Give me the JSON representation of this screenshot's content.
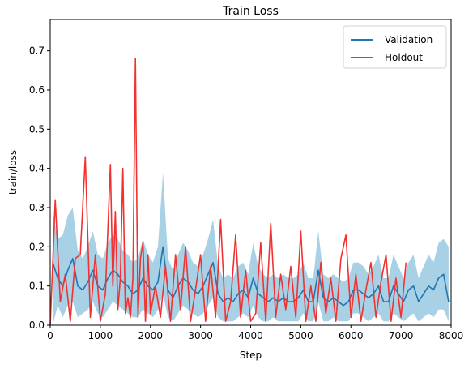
{
  "chart_data": {
    "type": "line",
    "title": "Train Loss",
    "xlabel": "Step",
    "ylabel": "train/loss",
    "xlim": [
      0,
      8000
    ],
    "ylim": [
      0,
      0.78
    ],
    "x_ticks": [
      0,
      1000,
      2000,
      3000,
      4000,
      5000,
      6000,
      7000,
      8000
    ],
    "x_tick_labels": [
      "0",
      "1000",
      "2000",
      "3000",
      "4000",
      "5000",
      "6000",
      "7000",
      "8000"
    ],
    "y_ticks": [
      0.0,
      0.1,
      0.2,
      0.3,
      0.4,
      0.5,
      0.6,
      0.7
    ],
    "y_tick_labels": [
      "0.0",
      "0.1",
      "0.2",
      "0.3",
      "0.4",
      "0.5",
      "0.6",
      "0.7"
    ],
    "grid": false,
    "legend_position": "top-right",
    "colors": {
      "validation": "#1f77b4",
      "holdout": "#f03232",
      "band": "#8cc2dc"
    },
    "series": [
      {
        "name": "Validation",
        "type": "line",
        "x": [
          50,
          150,
          250,
          350,
          450,
          550,
          650,
          750,
          850,
          950,
          1050,
          1150,
          1250,
          1350,
          1450,
          1550,
          1650,
          1750,
          1850,
          1950,
          2050,
          2150,
          2250,
          2350,
          2450,
          2550,
          2650,
          2750,
          2850,
          2950,
          3050,
          3150,
          3250,
          3350,
          3450,
          3550,
          3650,
          3750,
          3850,
          3950,
          4050,
          4150,
          4250,
          4350,
          4450,
          4550,
          4650,
          4750,
          4850,
          4950,
          5050,
          5150,
          5250,
          5350,
          5450,
          5550,
          5650,
          5750,
          5850,
          5950,
          6050,
          6150,
          6250,
          6350,
          6450,
          6550,
          6650,
          6750,
          6850,
          6950,
          7050,
          7150,
          7250,
          7350,
          7450,
          7550,
          7650,
          7750,
          7850,
          7950
        ],
        "y": [
          0.16,
          0.12,
          0.1,
          0.14,
          0.17,
          0.1,
          0.09,
          0.11,
          0.14,
          0.1,
          0.09,
          0.12,
          0.14,
          0.13,
          0.11,
          0.1,
          0.08,
          0.09,
          0.12,
          0.1,
          0.09,
          0.11,
          0.2,
          0.09,
          0.07,
          0.1,
          0.12,
          0.11,
          0.09,
          0.08,
          0.1,
          0.13,
          0.16,
          0.08,
          0.06,
          0.07,
          0.06,
          0.08,
          0.09,
          0.07,
          0.12,
          0.08,
          0.07,
          0.06,
          0.07,
          0.06,
          0.07,
          0.06,
          0.06,
          0.07,
          0.09,
          0.06,
          0.06,
          0.14,
          0.07,
          0.06,
          0.07,
          0.06,
          0.05,
          0.06,
          0.09,
          0.09,
          0.08,
          0.07,
          0.08,
          0.1,
          0.06,
          0.06,
          0.1,
          0.08,
          0.06,
          0.09,
          0.1,
          0.06,
          0.08,
          0.1,
          0.09,
          0.12,
          0.13,
          0.06
        ]
      },
      {
        "name": "Validation band",
        "type": "band",
        "x": [
          50,
          150,
          250,
          350,
          450,
          550,
          650,
          750,
          850,
          950,
          1050,
          1150,
          1250,
          1350,
          1450,
          1550,
          1650,
          1750,
          1850,
          1950,
          2050,
          2150,
          2250,
          2350,
          2450,
          2550,
          2650,
          2750,
          2850,
          2950,
          3050,
          3150,
          3250,
          3350,
          3450,
          3550,
          3650,
          3750,
          3850,
          3950,
          4050,
          4150,
          4250,
          4350,
          4450,
          4550,
          4650,
          4750,
          4850,
          4950,
          5050,
          5150,
          5250,
          5350,
          5450,
          5550,
          5650,
          5750,
          5850,
          5950,
          6050,
          6150,
          6250,
          6350,
          6450,
          6550,
          6650,
          6750,
          6850,
          6950,
          7050,
          7150,
          7250,
          7350,
          7450,
          7550,
          7650,
          7750,
          7850,
          7950
        ],
        "low": [
          0.0,
          0.05,
          0.02,
          0.05,
          0.06,
          0.02,
          0.03,
          0.04,
          0.06,
          0.03,
          0.02,
          0.04,
          0.06,
          0.05,
          0.04,
          0.03,
          0.02,
          0.02,
          0.04,
          0.03,
          0.02,
          0.04,
          0.08,
          0.02,
          0.01,
          0.03,
          0.05,
          0.04,
          0.03,
          0.02,
          0.03,
          0.05,
          0.07,
          0.02,
          0.01,
          0.01,
          0.01,
          0.02,
          0.03,
          0.02,
          0.05,
          0.02,
          0.01,
          0.01,
          0.02,
          0.01,
          0.01,
          0.01,
          0.01,
          0.01,
          0.03,
          0.01,
          0.01,
          0.06,
          0.01,
          0.01,
          0.02,
          0.01,
          0.01,
          0.01,
          0.03,
          0.03,
          0.02,
          0.01,
          0.02,
          0.03,
          0.01,
          0.01,
          0.03,
          0.02,
          0.01,
          0.02,
          0.03,
          0.01,
          0.02,
          0.03,
          0.02,
          0.04,
          0.04,
          0.01
        ],
        "high": [
          0.29,
          0.22,
          0.23,
          0.28,
          0.3,
          0.19,
          0.17,
          0.2,
          0.24,
          0.18,
          0.17,
          0.21,
          0.23,
          0.22,
          0.19,
          0.18,
          0.16,
          0.17,
          0.22,
          0.18,
          0.16,
          0.2,
          0.39,
          0.17,
          0.14,
          0.18,
          0.21,
          0.19,
          0.16,
          0.15,
          0.18,
          0.22,
          0.27,
          0.15,
          0.12,
          0.13,
          0.12,
          0.15,
          0.16,
          0.13,
          0.21,
          0.15,
          0.13,
          0.12,
          0.13,
          0.12,
          0.13,
          0.12,
          0.12,
          0.13,
          0.16,
          0.12,
          0.12,
          0.24,
          0.13,
          0.12,
          0.13,
          0.12,
          0.11,
          0.12,
          0.16,
          0.16,
          0.15,
          0.13,
          0.15,
          0.18,
          0.12,
          0.12,
          0.18,
          0.15,
          0.12,
          0.16,
          0.18,
          0.12,
          0.15,
          0.18,
          0.16,
          0.21,
          0.22,
          0.2
        ]
      },
      {
        "name": "Holdout",
        "type": "line",
        "x": [
          0,
          100,
          200,
          300,
          400,
          500,
          600,
          700,
          800,
          900,
          1000,
          1100,
          1200,
          1250,
          1300,
          1350,
          1400,
          1450,
          1500,
          1550,
          1600,
          1650,
          1700,
          1750,
          1800,
          1850,
          1900,
          1950,
          2000,
          2100,
          2200,
          2300,
          2400,
          2500,
          2600,
          2700,
          2800,
          2900,
          3000,
          3100,
          3200,
          3300,
          3400,
          3500,
          3600,
          3700,
          3800,
          3900,
          4000,
          4100,
          4200,
          4300,
          4400,
          4500,
          4600,
          4700,
          4800,
          4900,
          5000,
          5100,
          5200,
          5300,
          5400,
          5500,
          5600,
          5700,
          5800,
          5900,
          6000,
          6100,
          6200,
          6300,
          6400,
          6500,
          6600,
          6700,
          6800,
          6900,
          7000,
          7100
        ],
        "y": [
          0.0,
          0.32,
          0.06,
          0.13,
          0.01,
          0.17,
          0.18,
          0.43,
          0.02,
          0.18,
          0.01,
          0.08,
          0.41,
          0.1,
          0.29,
          0.04,
          0.12,
          0.4,
          0.03,
          0.07,
          0.02,
          0.12,
          0.68,
          0.02,
          0.17,
          0.21,
          0.01,
          0.18,
          0.03,
          0.1,
          0.02,
          0.15,
          0.01,
          0.18,
          0.04,
          0.2,
          0.01,
          0.09,
          0.18,
          0.01,
          0.15,
          0.02,
          0.27,
          0.01,
          0.06,
          0.23,
          0.02,
          0.14,
          0.01,
          0.03,
          0.21,
          0.01,
          0.26,
          0.02,
          0.13,
          0.04,
          0.15,
          0.02,
          0.24,
          0.01,
          0.1,
          0.01,
          0.16,
          0.03,
          0.12,
          0.01,
          0.17,
          0.23,
          0.02,
          0.13,
          0.01,
          0.09,
          0.16,
          0.02,
          0.11,
          0.18,
          0.01,
          0.12,
          0.02,
          0.16
        ]
      }
    ]
  }
}
